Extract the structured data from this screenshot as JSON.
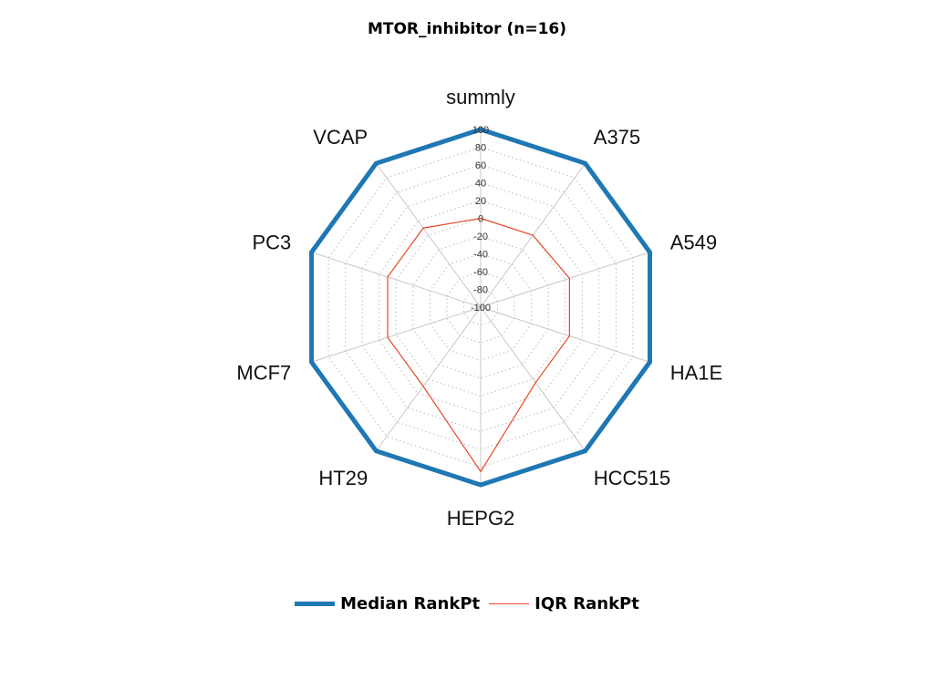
{
  "chart_data": {
    "type": "radar",
    "title": "MTOR_inhibitor (n=16)",
    "axes": [
      "summly",
      "A375",
      "A549",
      "HA1E",
      "HCC515",
      "HEPG2",
      "HT29",
      "MCF7",
      "PC3",
      "VCAP"
    ],
    "rlim": [
      -100,
      100
    ],
    "ticks": [
      100,
      80,
      60,
      40,
      20,
      0,
      -20,
      -40,
      -60,
      -80,
      -100
    ],
    "tick_labels": [
      "100",
      "80",
      "60",
      "40",
      "20",
      "0",
      "-20",
      "-40",
      "-60",
      "-80",
      "-100"
    ],
    "grid": true,
    "legend_position": "bottom",
    "series": [
      {
        "name": "Median RankPt",
        "color": "#1f77b4",
        "values": [
          100,
          100,
          100,
          100,
          100,
          100,
          100,
          100,
          100,
          100
        ]
      },
      {
        "name": "IQR RankPt",
        "color": "#e8472a",
        "values": [
          0,
          0,
          5,
          5,
          5,
          85,
          10,
          10,
          10,
          10
        ]
      }
    ]
  }
}
